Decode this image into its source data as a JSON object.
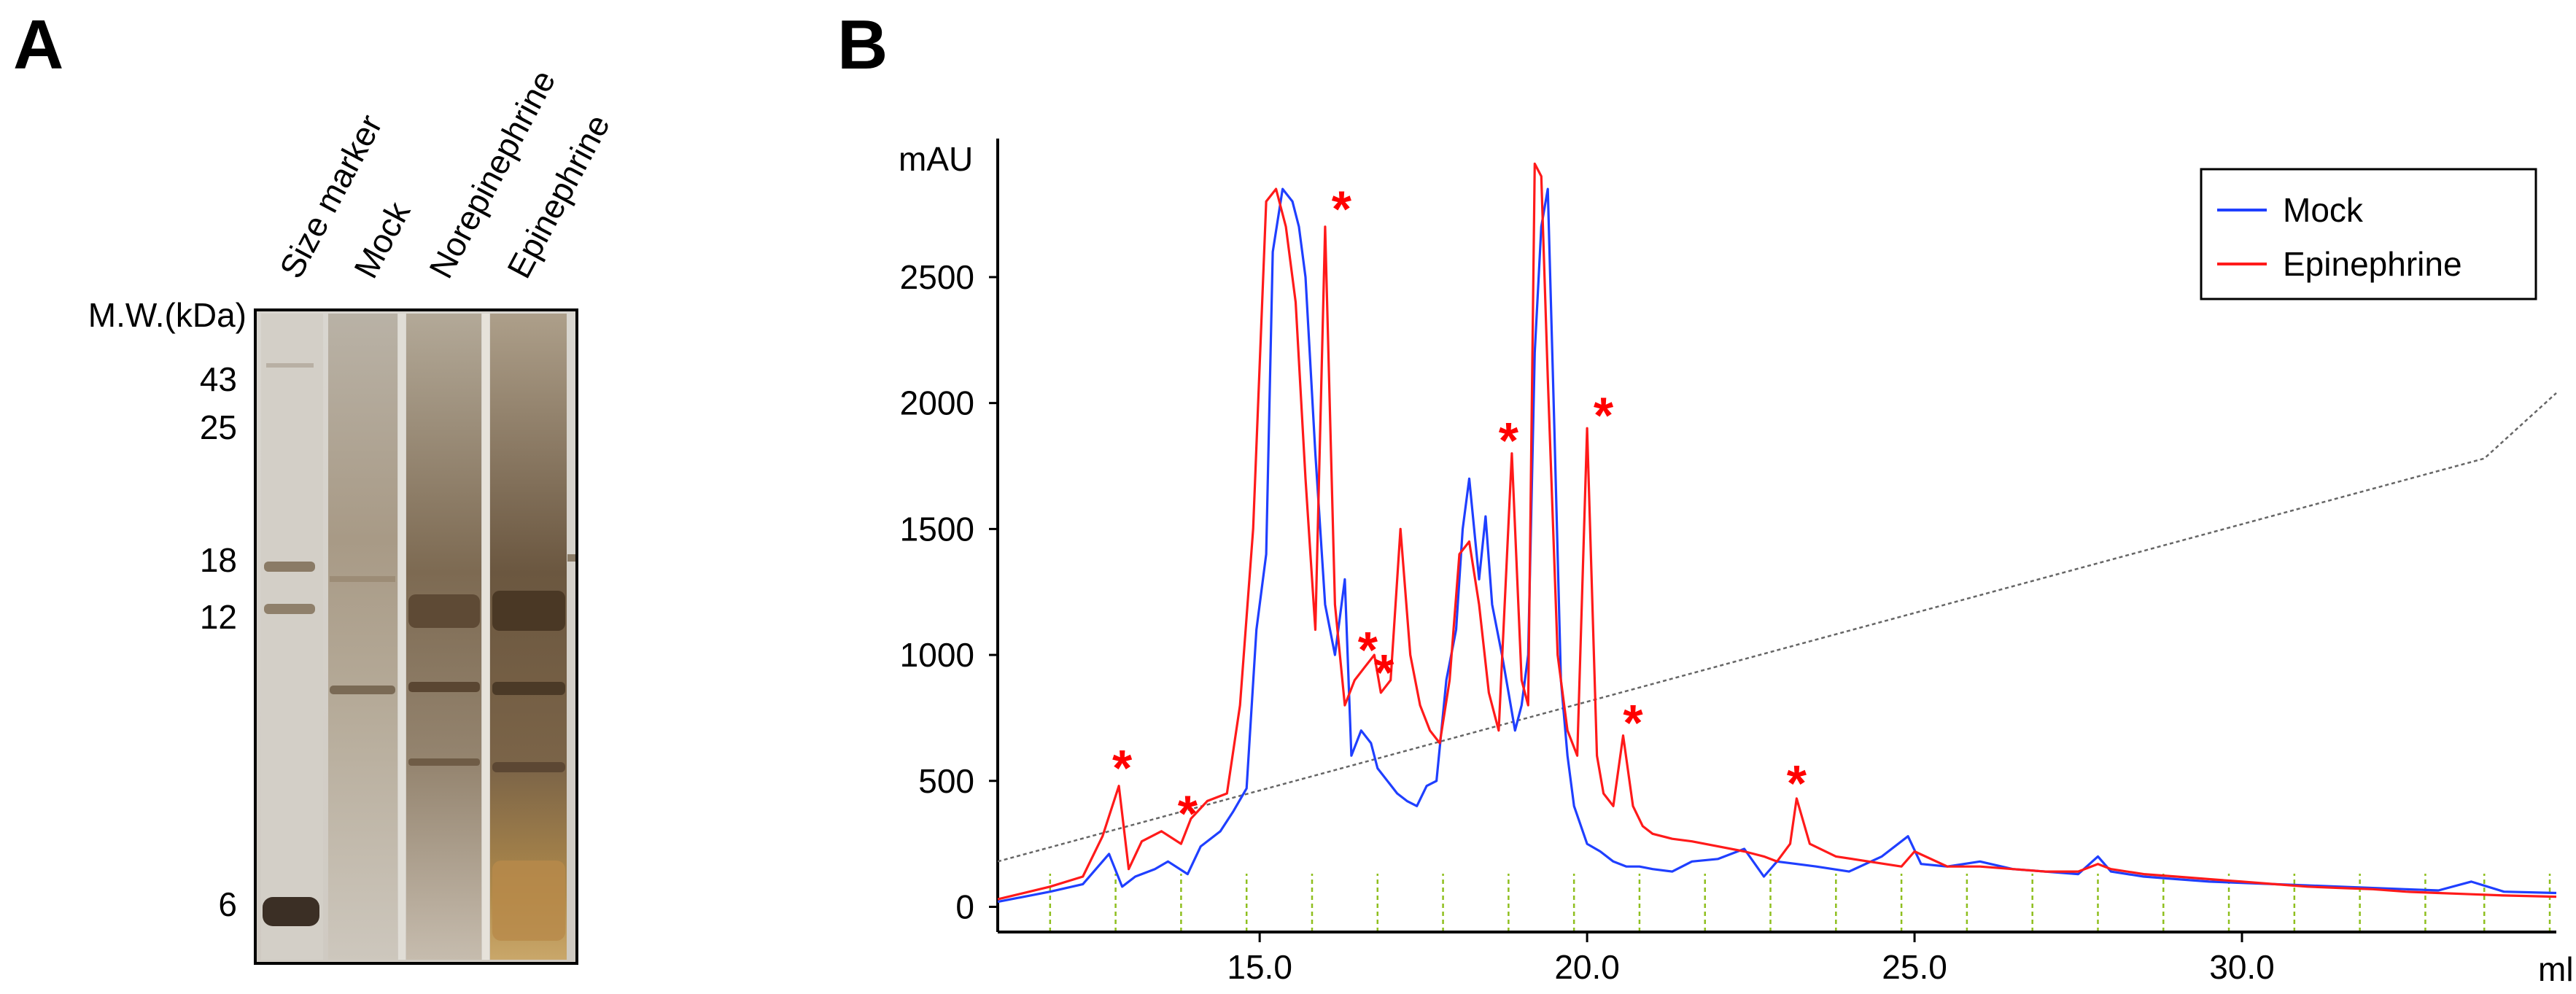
{
  "panel_a": {
    "label": "A",
    "mw_title": "M.W.(kDa)",
    "mw_markers": [
      "43",
      "25",
      "18",
      "12",
      "6"
    ],
    "lanes": [
      "Size marker",
      "Mock",
      "Norepinephrine",
      "Epinephrine"
    ]
  },
  "chart_data": {
    "type": "line",
    "label": "B",
    "ylabel": "mAU",
    "xlabel": "ml",
    "xlim": [
      11.0,
      34.8
    ],
    "ylim": [
      -100,
      3050
    ],
    "xticks": [
      15.0,
      20.0,
      25.0,
      30.0
    ],
    "xtick_labels": [
      "15.0",
      "20.0",
      "25.0",
      "30.0"
    ],
    "yticks": [
      0,
      500,
      1000,
      1500,
      2000,
      2500
    ],
    "ytick_labels": [
      "0",
      "500",
      "1000",
      "1500",
      "2000",
      "2500"
    ],
    "legend_position": "top-right",
    "colors": {
      "Mock": "#1f3fff",
      "Epinephrine": "#ff1a1a",
      "gradient": "#666666",
      "fraction": "#8fbf1f"
    },
    "series": [
      {
        "name": "Mock",
        "x": [
          11.0,
          11.8,
          12.3,
          12.7,
          12.9,
          13.1,
          13.4,
          13.6,
          13.9,
          14.1,
          14.4,
          14.6,
          14.8,
          14.95,
          15.1,
          15.2,
          15.35,
          15.5,
          15.6,
          15.7,
          15.85,
          16.0,
          16.15,
          16.3,
          16.4,
          16.55,
          16.7,
          16.8,
          16.95,
          17.1,
          17.25,
          17.4,
          17.55,
          17.7,
          17.85,
          18.0,
          18.1,
          18.2,
          18.35,
          18.45,
          18.55,
          18.7,
          18.8,
          18.9,
          19.0,
          19.1,
          19.2,
          19.3,
          19.4,
          19.5,
          19.6,
          19.7,
          19.8,
          20.0,
          20.2,
          20.4,
          20.6,
          20.8,
          21.0,
          21.3,
          21.6,
          22.0,
          22.4,
          22.7,
          22.9,
          23.2,
          23.5,
          24.0,
          24.5,
          24.9,
          25.1,
          25.5,
          26.0,
          26.5,
          27.0,
          27.5,
          27.8,
          28.0,
          28.5,
          29.0,
          29.5,
          30.0,
          30.5,
          31.0,
          31.5,
          32.0,
          32.5,
          33.0,
          33.5,
          34.0,
          34.8
        ],
        "y": [
          20,
          60,
          90,
          210,
          80,
          120,
          150,
          180,
          130,
          240,
          300,
          380,
          470,
          1100,
          1400,
          2600,
          2850,
          2800,
          2700,
          2500,
          1800,
          1200,
          1000,
          1300,
          600,
          700,
          650,
          550,
          500,
          450,
          420,
          400,
          480,
          500,
          900,
          1100,
          1500,
          1700,
          1300,
          1550,
          1200,
          1000,
          850,
          700,
          800,
          1000,
          2200,
          2700,
          2850,
          1900,
          900,
          600,
          400,
          250,
          220,
          180,
          160,
          160,
          150,
          140,
          180,
          190,
          230,
          120,
          180,
          170,
          160,
          140,
          200,
          280,
          170,
          160,
          180,
          150,
          140,
          130,
          200,
          140,
          120,
          110,
          100,
          95,
          90,
          85,
          80,
          75,
          70,
          65,
          100,
          60,
          55
        ]
      },
      {
        "name": "Epinephrine",
        "x": [
          11.0,
          11.8,
          12.3,
          12.6,
          12.85,
          13.0,
          13.2,
          13.5,
          13.8,
          13.95,
          14.2,
          14.5,
          14.7,
          14.9,
          15.1,
          15.25,
          15.4,
          15.55,
          15.7,
          15.85,
          16.0,
          16.15,
          16.3,
          16.45,
          16.6,
          16.75,
          16.85,
          17.0,
          17.15,
          17.3,
          17.45,
          17.6,
          17.75,
          17.9,
          18.05,
          18.2,
          18.35,
          18.5,
          18.65,
          18.85,
          19.0,
          19.1,
          19.2,
          19.3,
          19.4,
          19.55,
          19.7,
          19.85,
          20.0,
          20.15,
          20.25,
          20.4,
          20.55,
          20.7,
          20.85,
          21.0,
          21.3,
          21.6,
          22.0,
          22.4,
          22.7,
          22.9,
          23.1,
          23.2,
          23.4,
          23.8,
          24.3,
          24.8,
          25.0,
          25.5,
          26.0,
          26.5,
          27.0,
          27.5,
          27.8,
          28.0,
          28.5,
          29.0,
          29.5,
          30.0,
          30.5,
          31.0,
          31.5,
          32.0,
          32.5,
          33.0,
          33.5,
          34.0,
          34.8
        ],
        "y": [
          30,
          80,
          120,
          280,
          480,
          150,
          260,
          300,
          250,
          350,
          420,
          450,
          800,
          1500,
          2800,
          2850,
          2700,
          2400,
          1700,
          1100,
          2700,
          1200,
          800,
          900,
          950,
          1000,
          850,
          900,
          1500,
          1000,
          800,
          700,
          650,
          900,
          1400,
          1450,
          1200,
          850,
          700,
          1800,
          900,
          800,
          2950,
          2900,
          2100,
          1000,
          700,
          600,
          1900,
          600,
          450,
          400,
          680,
          400,
          320,
          290,
          270,
          260,
          240,
          220,
          200,
          180,
          250,
          430,
          250,
          200,
          180,
          160,
          220,
          160,
          160,
          150,
          140,
          140,
          170,
          150,
          130,
          120,
          110,
          100,
          90,
          80,
          75,
          70,
          60,
          55,
          50,
          45,
          40
        ]
      },
      {
        "name": "gradient",
        "x": [
          11.0,
          33.7,
          34.8
        ],
        "y": [
          180,
          1780,
          2040
        ]
      }
    ],
    "fraction_marks_x": [
      11.8,
      12.8,
      13.8,
      14.8,
      15.8,
      16.8,
      17.8,
      18.8,
      19.8,
      20.8,
      21.8,
      22.8,
      23.8,
      24.8,
      25.8,
      26.8,
      27.8,
      28.8,
      29.8,
      30.8,
      31.8,
      32.8,
      33.7,
      34.7
    ],
    "annotations": [
      {
        "text": "*",
        "x": 12.9,
        "y": 580
      },
      {
        "text": "*",
        "x": 13.9,
        "y": 400
      },
      {
        "text": "*",
        "x": 16.25,
        "y": 2800
      },
      {
        "text": "*",
        "x": 16.65,
        "y": 1050
      },
      {
        "text": "*",
        "x": 16.9,
        "y": 960
      },
      {
        "text": "*",
        "x": 18.8,
        "y": 1880
      },
      {
        "text": "*",
        "x": 20.25,
        "y": 1980
      },
      {
        "text": "*",
        "x": 20.7,
        "y": 760
      },
      {
        "text": "*",
        "x": 23.2,
        "y": 520
      }
    ],
    "legend": [
      "Mock",
      "Epinephrine"
    ]
  }
}
